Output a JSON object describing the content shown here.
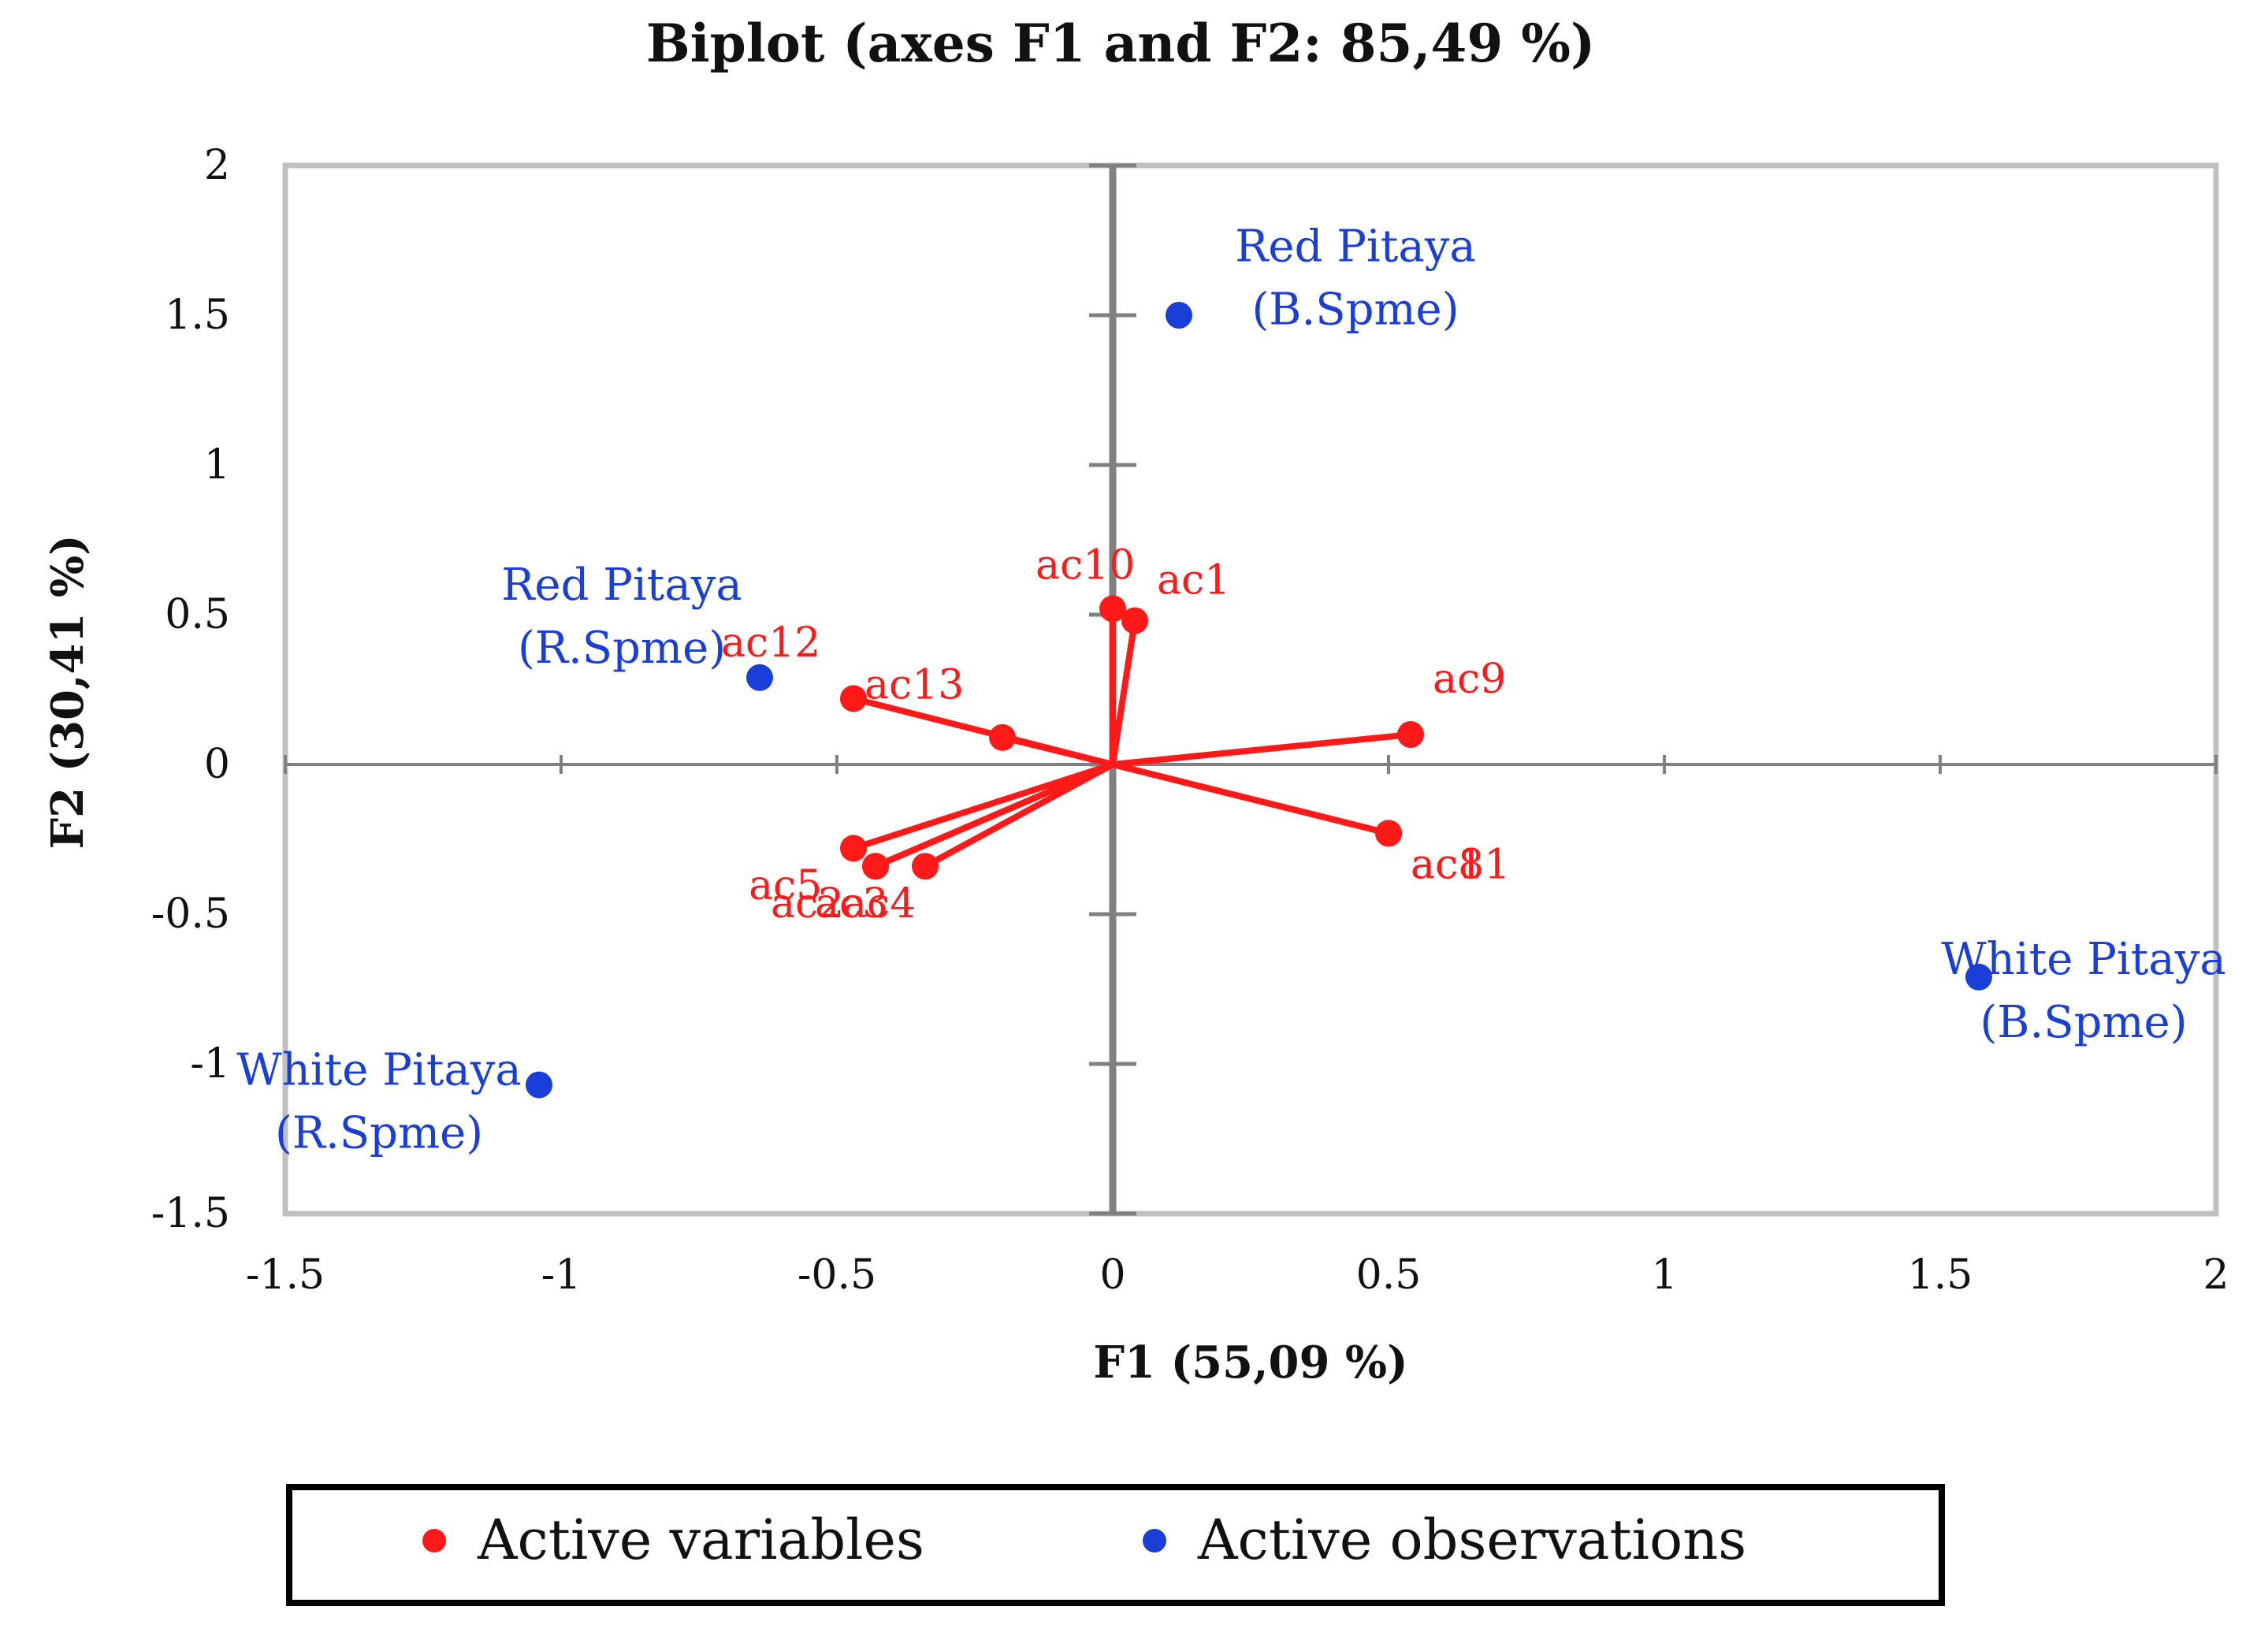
{
  "chart_data": {
    "type": "scatter",
    "subtype": "biplot",
    "title": "Biplot (axes F1 and F2: 85,49 %)",
    "xlabel": "F1 (55,09 %)",
    "ylabel": "F2 (30,41 %)",
    "xlim": [
      -1.5,
      2
    ],
    "ylim": [
      -1.5,
      2
    ],
    "xticks": [
      -1.5,
      -1,
      -0.5,
      0,
      0.5,
      1,
      1.5,
      2
    ],
    "yticks": [
      -1.5,
      -1,
      -0.5,
      0,
      0.5,
      1,
      1.5,
      2
    ],
    "xtick_labels": [
      "-1.5",
      "-1",
      "-0.5",
      "0",
      "0.5",
      "1",
      "1.5",
      "2"
    ],
    "ytick_labels": [
      "-1.5",
      "-1",
      "-0.5",
      "0",
      "0.5",
      "1",
      "1.5",
      "2"
    ],
    "gridlines": false,
    "colors": {
      "variables": "#ff1a1a",
      "observations": "#1a3ed8",
      "axes": "#808080",
      "frame": "#c0c0c0"
    },
    "variables": [
      {
        "name": "ac10",
        "x": 0.0,
        "y": 0.52
      },
      {
        "name": "ac1",
        "x": 0.04,
        "y": 0.48
      },
      {
        "name": "ac12",
        "x": -0.2,
        "y": 0.09
      },
      {
        "name": "ac13",
        "x": -0.47,
        "y": 0.22
      },
      {
        "name": "ac9",
        "x": 0.54,
        "y": 0.1
      },
      {
        "name": "ac8",
        "x": 0.5,
        "y": -0.23
      },
      {
        "name": "ac11",
        "x": 0.5,
        "y": -0.23
      },
      {
        "name": "ac5",
        "x": -0.47,
        "y": -0.28
      },
      {
        "name": "ac2",
        "x": -0.43,
        "y": -0.34
      },
      {
        "name": "ac3",
        "x": -0.43,
        "y": -0.34
      },
      {
        "name": "ac4",
        "x": -0.34,
        "y": -0.34
      }
    ],
    "variable_labels": [
      {
        "text": "ac10",
        "x": -0.14,
        "y": 0.62
      },
      {
        "text": "ac1",
        "x": 0.08,
        "y": 0.57
      },
      {
        "text": "ac12",
        "x": -0.71,
        "y": 0.36
      },
      {
        "text": "ac13",
        "x": -0.45,
        "y": 0.22
      },
      {
        "text": "ac9",
        "x": 0.58,
        "y": 0.24
      },
      {
        "text": "ac8",
        "x": 0.54,
        "y": -0.38
      },
      {
        "text": "ac11",
        "x": 0.54,
        "y": -0.38
      },
      {
        "text": "ac5",
        "x": -0.66,
        "y": -0.45
      },
      {
        "text": "ac2",
        "x": -0.62,
        "y": -0.51
      },
      {
        "text": "ac3",
        "x": -0.54,
        "y": -0.51
      },
      {
        "text": "ac4",
        "x": -0.49,
        "y": -0.51
      }
    ],
    "observations": [
      {
        "name_line1": "Red Pitaya",
        "name_line2": "(B.Spme)",
        "x": 0.12,
        "y": 1.5
      },
      {
        "name_line1": "Red Pitaya",
        "name_line2": "(R.Spme)",
        "x": -0.64,
        "y": 0.29
      },
      {
        "name_line1": "White Pitaya",
        "name_line2": "(B.Spme)",
        "x": 1.57,
        "y": -0.71
      },
      {
        "name_line1": "White Pitaya",
        "name_line2": "(R.Spme)",
        "x": -1.04,
        "y": -1.07
      }
    ],
    "observation_labels": [
      {
        "x": 0.44,
        "y": 1.68,
        "dy": 0.21
      },
      {
        "x": -0.89,
        "y": 0.55,
        "dy": 0.21
      },
      {
        "x": 1.76,
        "y": -0.7,
        "dy": 0.21
      },
      {
        "x": -1.33,
        "y": -1.07,
        "dy": 0.21
      }
    ],
    "legend": {
      "position": "bottom",
      "items": [
        {
          "label": "Active variables",
          "color": "#ff1a1a"
        },
        {
          "label": "Active observations",
          "color": "#1a3ed8"
        }
      ]
    }
  }
}
